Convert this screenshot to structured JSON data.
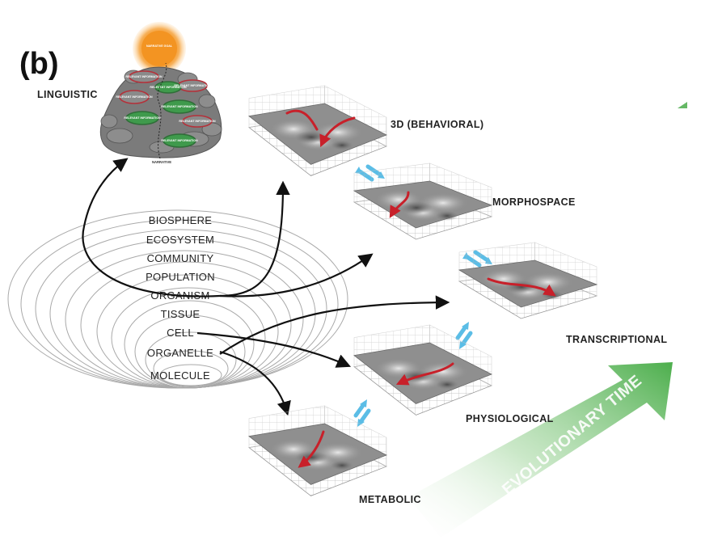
{
  "panel_label": "(b)",
  "linguistic": {
    "label": "LINGUISTIC",
    "goal": "NARRATIVE GOAL",
    "stone_text": "RELEVANT INFORMATION",
    "narrative": "NARRATIVE"
  },
  "levels": [
    "BIOSPHERE",
    "ECOSYSTEM",
    "COMMUNITY",
    "POPULATION",
    "ORGANISM",
    "TISSUE",
    "CELL",
    "ORGANELLE",
    "MOLECULE"
  ],
  "landscapes": [
    "3D (BEHAVIORAL)",
    "MORPHOSPACE",
    "TRANSCRIPTIONAL",
    "PHYSIOLOGICAL",
    "METABOLIC"
  ],
  "evolution_label": "EVOLUTIONARY TIME",
  "colors": {
    "trajectory": "#c8202a",
    "double_arrow": "#5bbde6",
    "evolution_arrow": "#5cb85c",
    "goal": "#f39422",
    "green_stone": "#3f9a4c",
    "red_stone": "#b4313a"
  }
}
